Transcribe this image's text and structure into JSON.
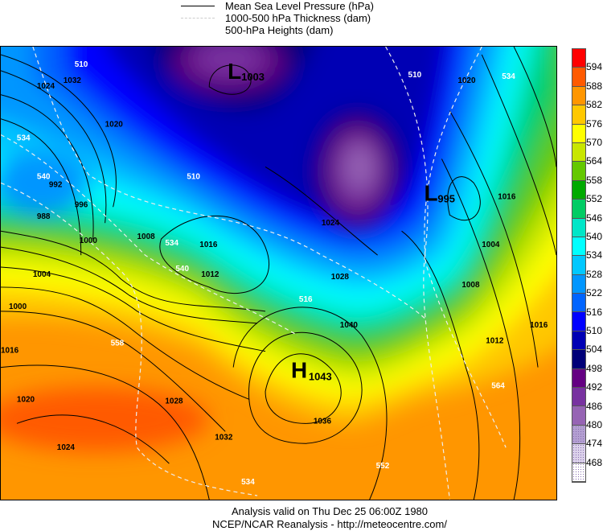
{
  "legend": {
    "pressure": "Mean Sea Level Pressure (hPa)",
    "thickness": "1000-500 hPa Thickness (dam)",
    "heights": "500-hPa Heights (dam)"
  },
  "colorbar": {
    "labels": [
      "594",
      "588",
      "582",
      "576",
      "570",
      "564",
      "558",
      "552",
      "546",
      "540",
      "534",
      "528",
      "522",
      "516",
      "510",
      "504",
      "498",
      "492",
      "486",
      "480",
      "474",
      "468"
    ],
    "colors": [
      "#ff0000",
      "#ff5a00",
      "#ff9600",
      "#ffc800",
      "#ffff00",
      "#c8e600",
      "#64c800",
      "#00aa00",
      "#00cc64",
      "#00e6c8",
      "#00ffff",
      "#00c8ff",
      "#0096ff",
      "#0064ff",
      "#0000ff",
      "#0000b4",
      "#000078",
      "#640082",
      "#7832a0",
      "#9664b4",
      "#b4a0d2",
      "#dcd2eb",
      "#ffffff"
    ]
  },
  "systems": [
    {
      "type": "L",
      "value": "1003"
    },
    {
      "type": "L",
      "value": "995"
    },
    {
      "type": "H",
      "value": "1043"
    }
  ],
  "isobar_labels": [
    "1024",
    "1032",
    "1020",
    "1008",
    "1016",
    "1012",
    "1004",
    "1000",
    "996",
    "992",
    "988",
    "1040",
    "1036",
    "1028",
    "1024",
    "1016",
    "1020",
    "1032",
    "1028",
    "1024",
    "1016",
    "1012",
    "1008",
    "1004",
    "1000",
    "1020",
    "1016"
  ],
  "thickness_labels": [
    "510",
    "534",
    "540",
    "510",
    "534",
    "540",
    "516",
    "534",
    "552",
    "564",
    "510",
    "534",
    "558"
  ],
  "footer": {
    "line1": "Analysis valid on Thu Dec 25 06:00Z 1980",
    "line2": "NCEP/NCAR Reanalysis - http://meteocentre.com/"
  }
}
